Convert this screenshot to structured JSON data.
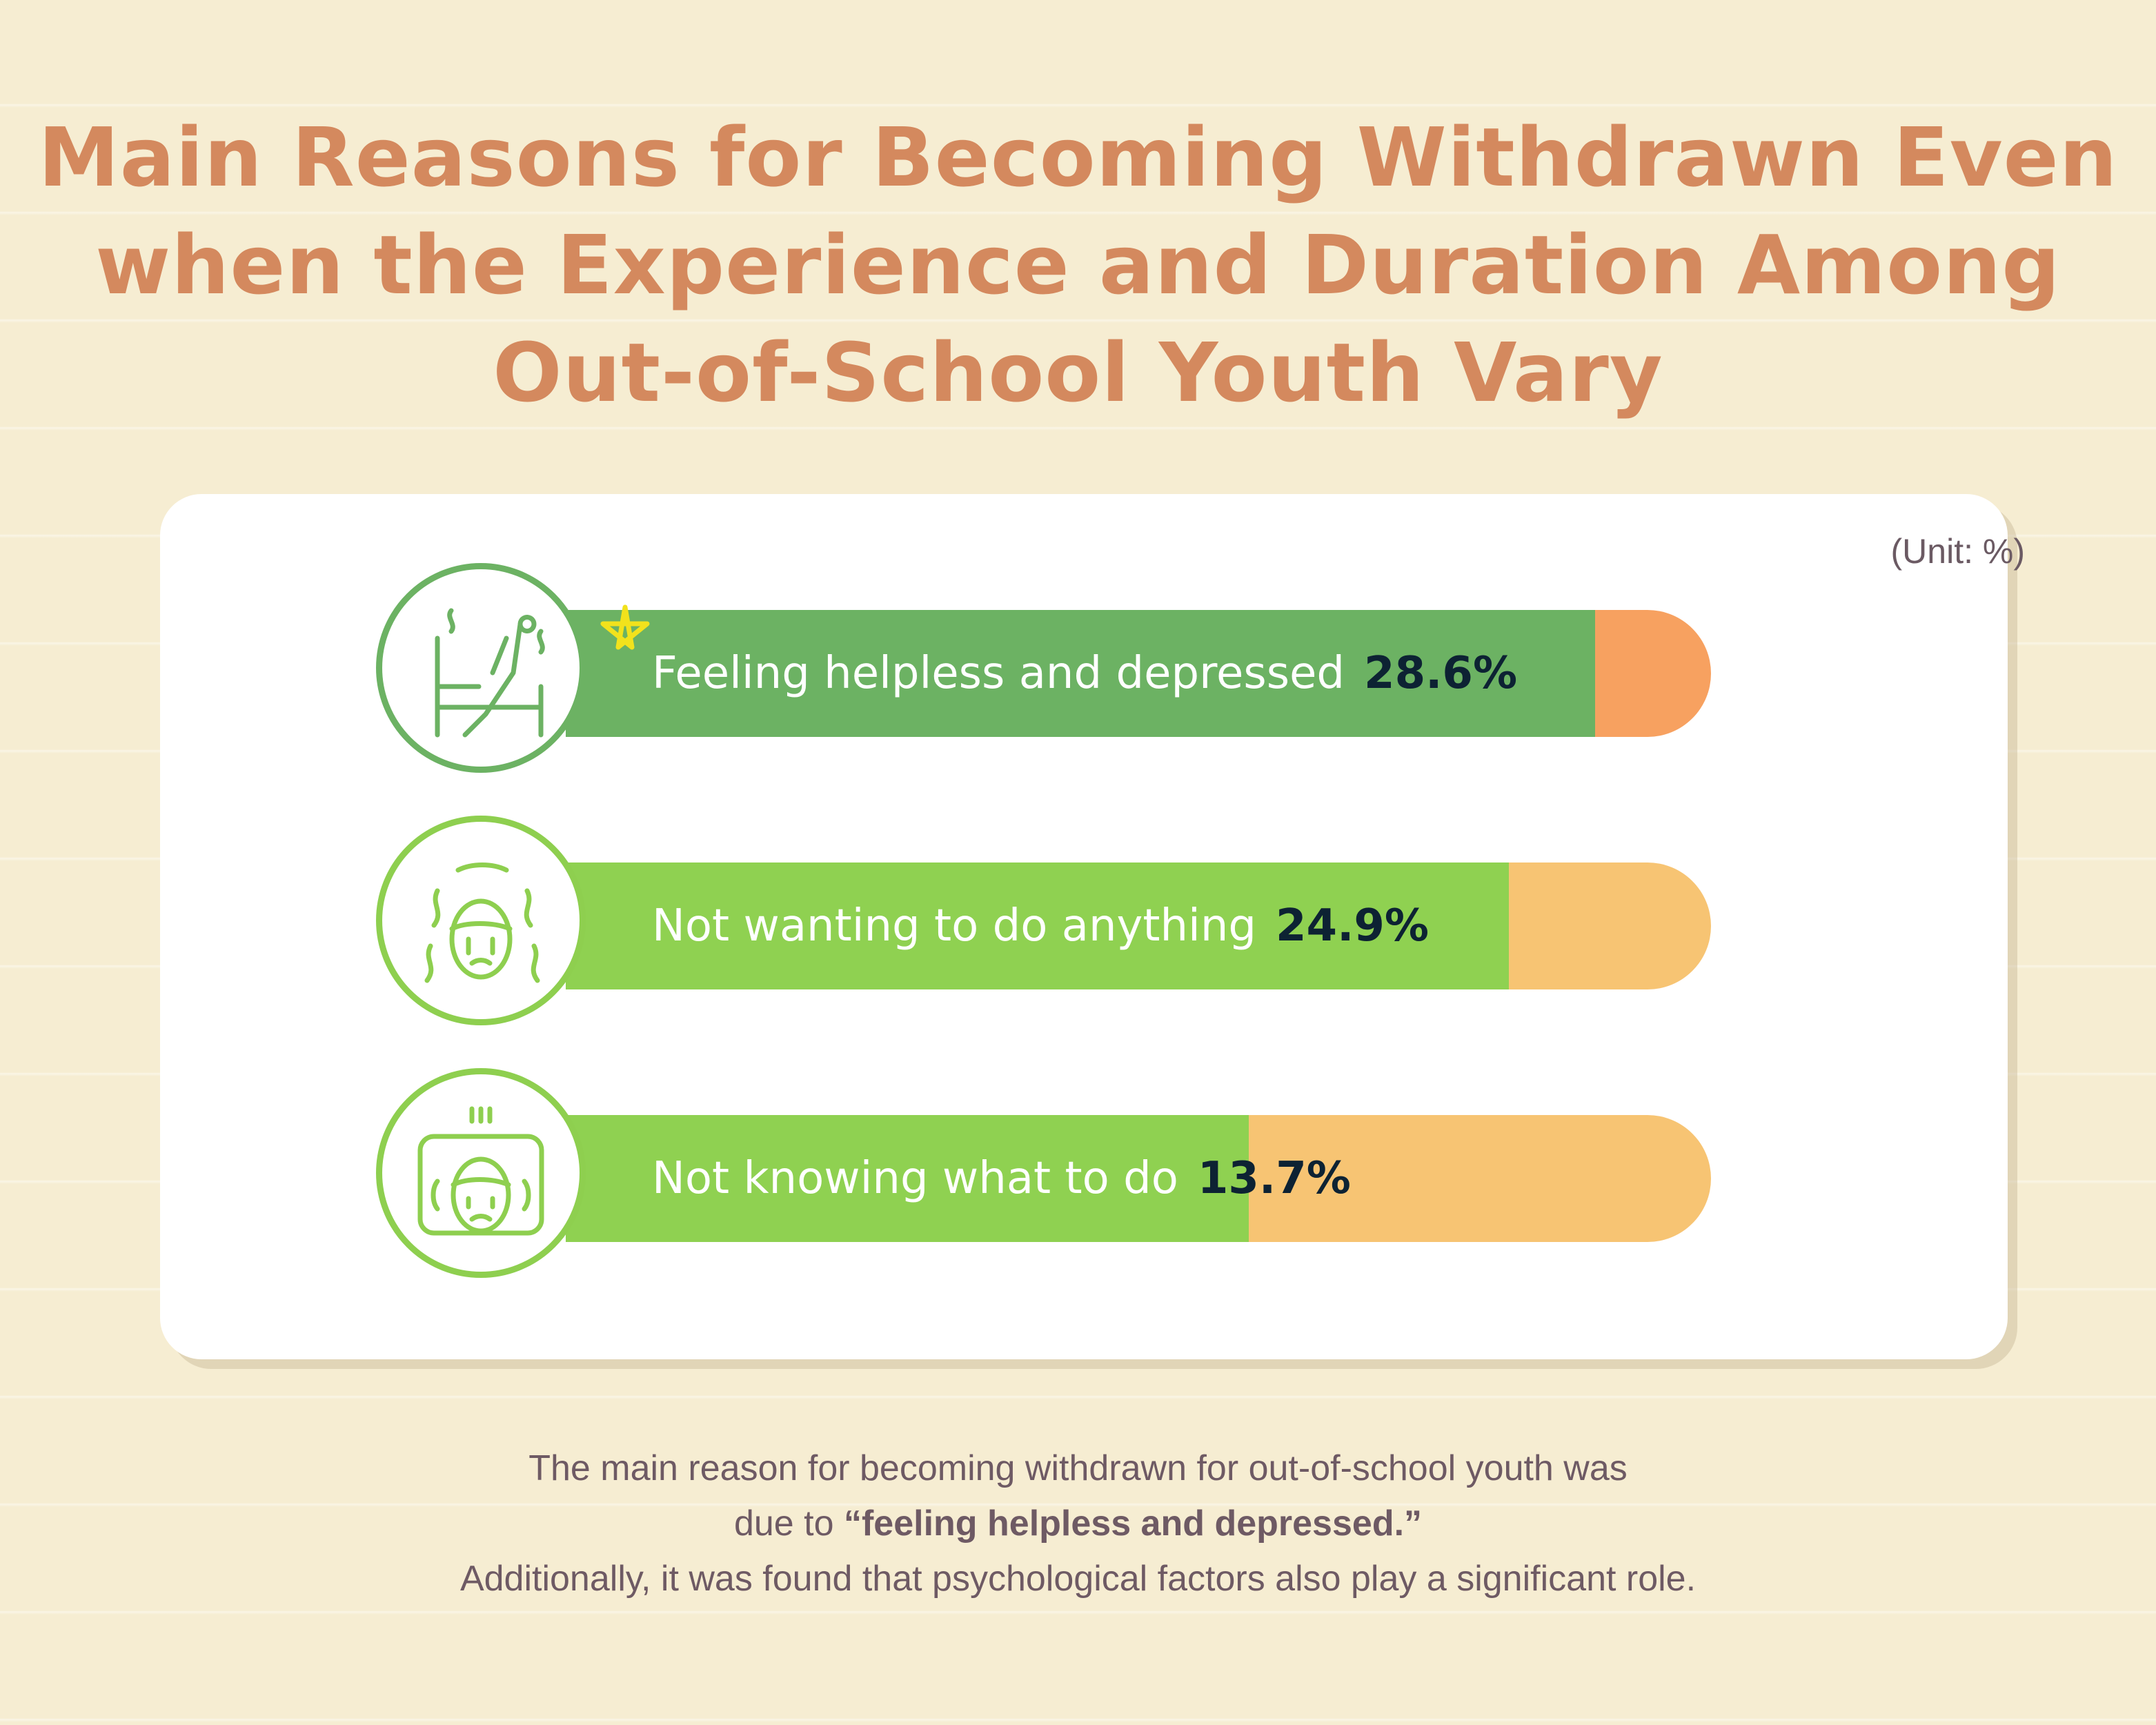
{
  "title": {
    "line1": "Main Reasons for Becoming Withdrawn Even",
    "line2": "when the Experience and Duration Among",
    "line3": "Out-of-School Youth Vary"
  },
  "unit_label": "(Unit: %)",
  "colors": {
    "title": "#d4895e",
    "green_top": "#6cb263",
    "green": "#8fd151",
    "orange_top": "#f7a160",
    "orange": "#f7c473"
  },
  "chart_data": {
    "type": "bar",
    "orientation": "horizontal",
    "unit": "%",
    "categories": [
      "Feeling helpless and depressed",
      "Not wanting to do anything",
      "Not knowing what to do"
    ],
    "values": [
      28.6,
      24.9,
      13.7
    ],
    "value_labels": [
      "28.6%",
      "24.9%",
      "13.7%"
    ],
    "icons": [
      "person-leaving-bed-icon",
      "overwhelmed-face-icon",
      "confused-face-icon"
    ]
  },
  "footer": {
    "line1": "The main reason for becoming withdrawn for out-of-school youth was",
    "line2_prefix": "due to ",
    "line2_bold": "“feeling helpless and depressed.”",
    "line3": "Additionally, it was found that psychological factors also play a significant role."
  }
}
